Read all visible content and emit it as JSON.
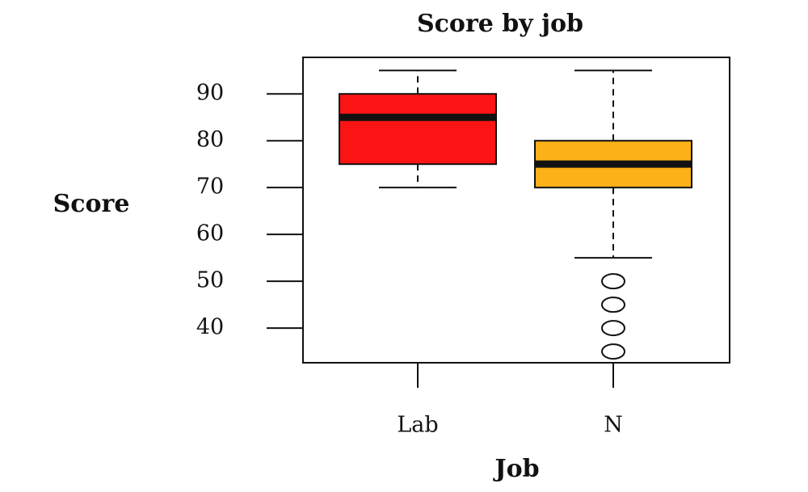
{
  "chart_data": {
    "type": "box",
    "title": "Score by job",
    "x_label": "Job",
    "y_label": "Score",
    "categories": [
      "Lab",
      "N"
    ],
    "colors": [
      "#fa1414",
      "#fbb117"
    ],
    "boxes": [
      {
        "whislo": 70,
        "q1": 75,
        "med": 85,
        "q3": 90,
        "whishi": 95,
        "fliers": []
      },
      {
        "whislo": 55,
        "q1": 70,
        "med": 75,
        "q3": 80,
        "whishi": 95,
        "fliers": [
          50,
          45,
          40,
          35
        ]
      }
    ],
    "ylim": [
      32.6,
      97.8
    ],
    "yticks": [
      40,
      50,
      60,
      70,
      80,
      90
    ]
  }
}
